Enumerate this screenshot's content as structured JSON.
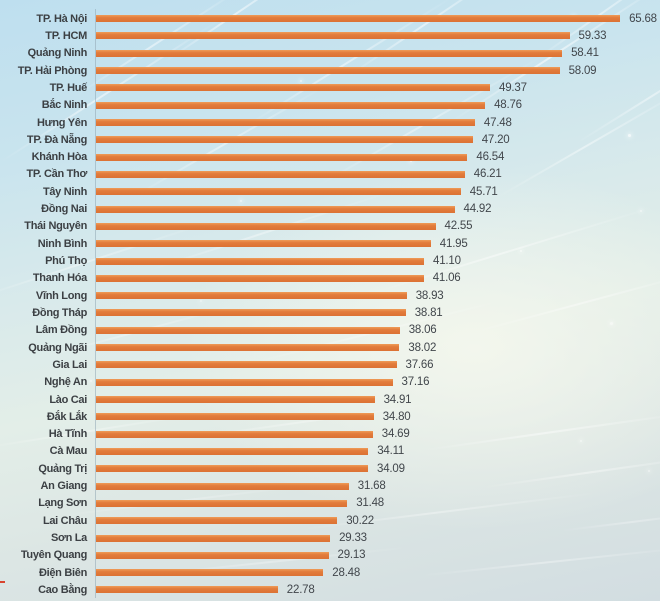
{
  "chart_data": {
    "type": "bar",
    "orientation": "horizontal",
    "title": "",
    "xlabel": "",
    "ylabel": "",
    "xlim": [
      0,
      66
    ],
    "grid": false,
    "legend": "none",
    "bar_color": "#e27b3b",
    "label_color": "#3c4044",
    "categories": [
      "TP. Hà Nội",
      "TP. HCM",
      "Quảng Ninh",
      "TP. Hải Phòng",
      "TP. Huế",
      "Bắc Ninh",
      "Hưng Yên",
      "TP. Đà Nẵng",
      "Khánh Hòa",
      "TP. Cần Thơ",
      "Tây Ninh",
      "Đồng Nai",
      "Thái Nguyên",
      "Ninh Bình",
      "Phú Thọ",
      "Thanh Hóa",
      "Vĩnh Long",
      "Đồng Tháp",
      "Lâm Đồng",
      "Quảng Ngãi",
      "Gia Lai",
      "Nghệ An",
      "Lào Cai",
      "Đắk Lắk",
      "Hà Tĩnh",
      "Cà Mau",
      "Quảng Trị",
      "An Giang",
      "Lạng Sơn",
      "Lai Châu",
      "Sơn La",
      "Tuyên Quang",
      "Điện Biên",
      "Cao Bằng"
    ],
    "values": [
      65.68,
      59.33,
      58.41,
      58.09,
      49.37,
      48.76,
      47.48,
      47.2,
      46.54,
      46.21,
      45.71,
      44.92,
      42.55,
      41.95,
      41.1,
      41.06,
      38.93,
      38.81,
      38.06,
      38.02,
      37.66,
      37.16,
      34.91,
      34.8,
      34.69,
      34.11,
      34.09,
      31.68,
      31.48,
      30.22,
      29.33,
      29.13,
      28.48,
      22.78
    ],
    "value_labels": [
      "65.68",
      "59.33",
      "58.41",
      "58.09",
      "49.37",
      "48.76",
      "47.48",
      "47.20",
      "46.54",
      "46.21",
      "45.71",
      "44.92",
      "42.55",
      "41.95",
      "41.10",
      "41.06",
      "38.93",
      "38.81",
      "38.06",
      "38.02",
      "37.66",
      "37.16",
      "34.91",
      "34.80",
      "34.69",
      "34.11",
      "34.09",
      "31.68",
      "31.48",
      "30.22",
      "29.33",
      "29.13",
      "28.48",
      "22.78"
    ]
  }
}
